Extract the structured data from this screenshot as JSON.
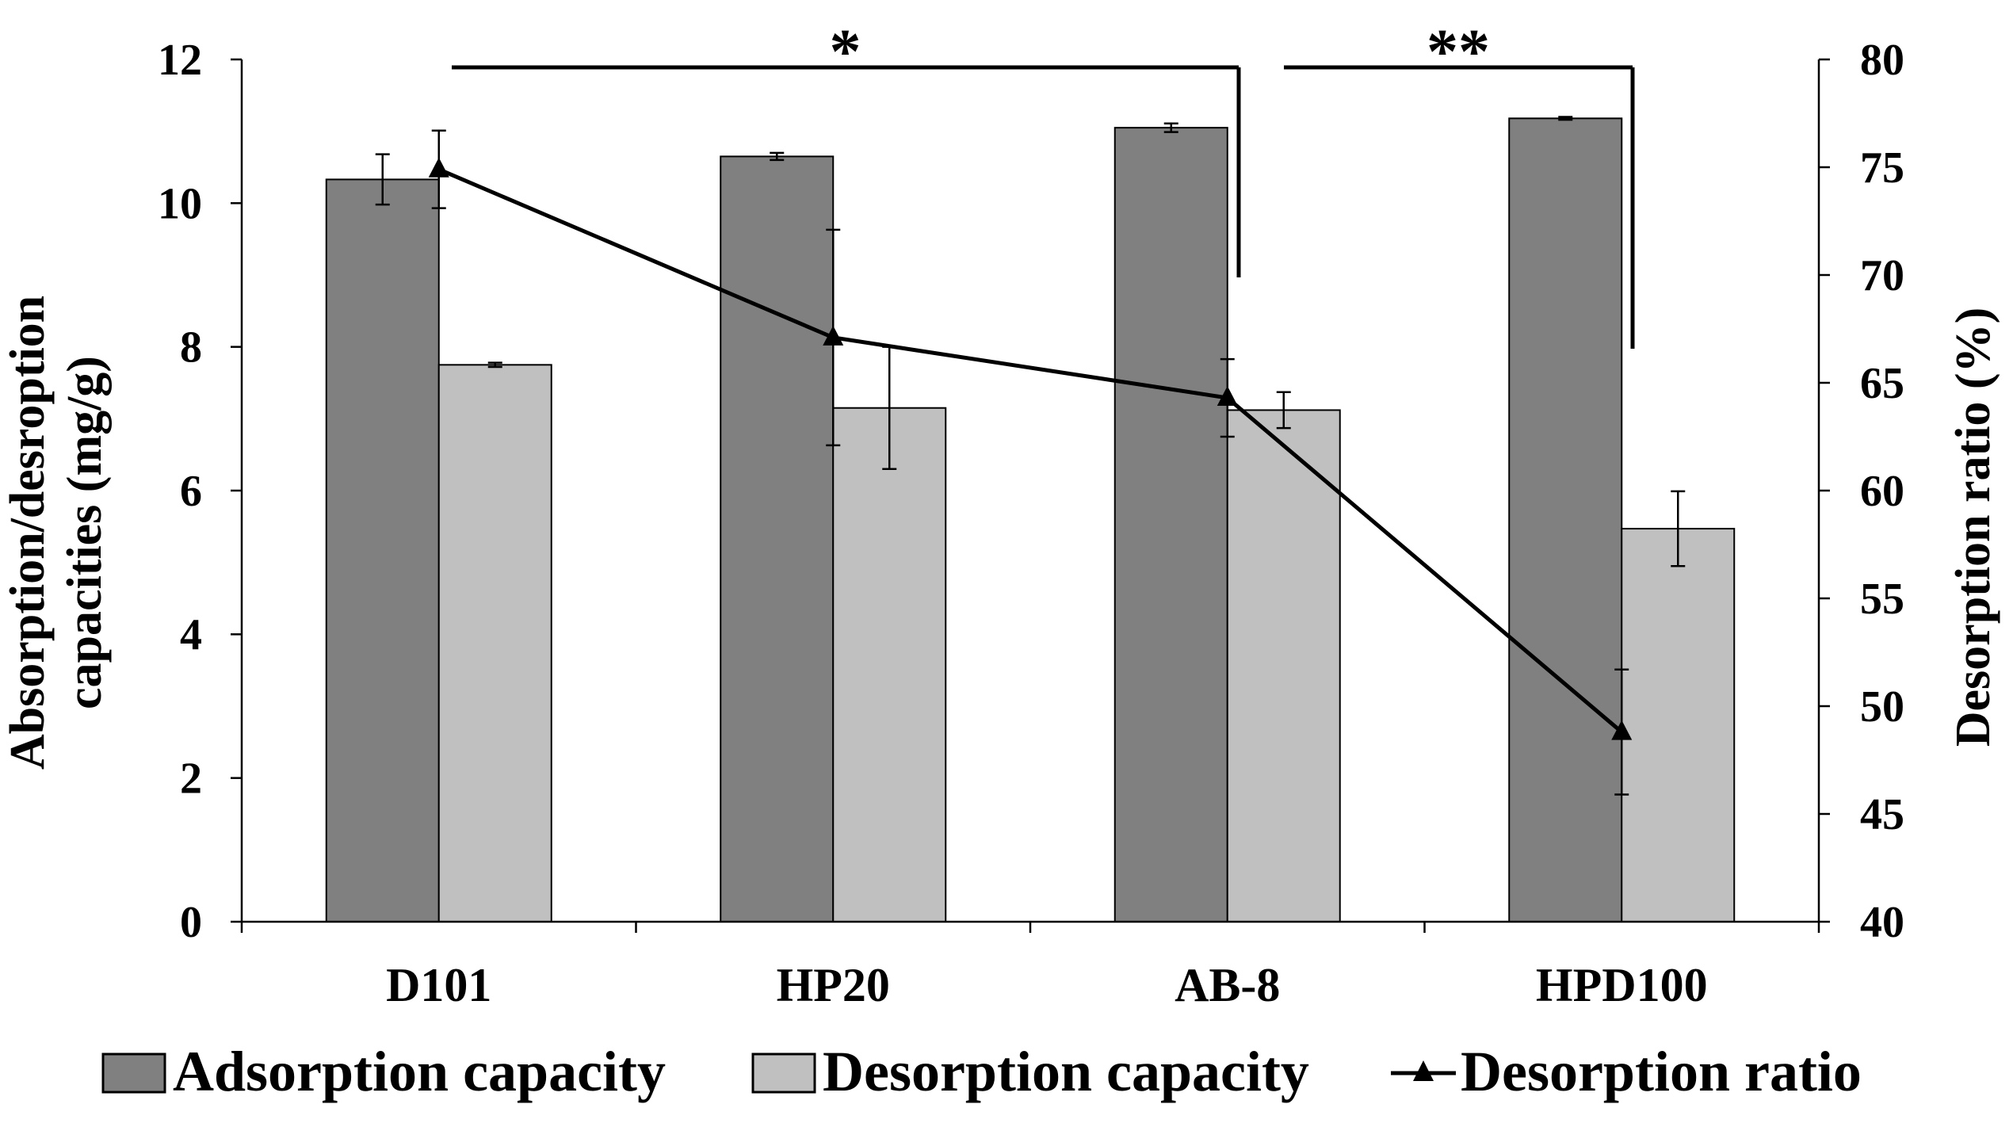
{
  "chart_data": {
    "type": "bar",
    "categories": [
      "D101",
      "HP20",
      "AB-8",
      "HPD100"
    ],
    "series": [
      {
        "name": "Adsorption capacity",
        "axis": "left",
        "kind": "bar",
        "color": "#808080",
        "values": [
          10.33,
          10.65,
          11.05,
          11.18
        ],
        "errors": [
          0.35,
          0.05,
          0.06,
          0.02
        ]
      },
      {
        "name": "Desorption capacity",
        "axis": "left",
        "kind": "bar",
        "color": "#c0c0c0",
        "values": [
          7.75,
          7.15,
          7.12,
          5.47
        ],
        "errors": [
          0.03,
          0.85,
          0.25,
          0.52
        ]
      },
      {
        "name": "Desorption ratio",
        "axis": "right",
        "kind": "line",
        "marker": "triangle",
        "color": "#000000",
        "values": [
          74.9,
          67.1,
          64.3,
          48.8
        ],
        "errors": [
          1.8,
          5.0,
          1.8,
          2.9
        ]
      }
    ],
    "ylabel": "Absorption/desroption capacities (mg/g)",
    "ylabel_right": "Desorption ratio (%)",
    "xlabel": "",
    "ylim": [
      0,
      12
    ],
    "ylim_right": [
      40,
      80
    ],
    "yticks": [
      "0",
      "2",
      "4",
      "6",
      "8",
      "10",
      "12"
    ],
    "yticks_right": [
      "40",
      "45",
      "50",
      "55",
      "60",
      "65",
      "70",
      "75",
      "80"
    ],
    "significance": [
      {
        "label": "*",
        "from": "D101",
        "to": "AB-8"
      },
      {
        "label": "**",
        "from": "AB-8",
        "to": "HPD100"
      }
    ],
    "legend": [
      "Adsorption capacity",
      "Desorption capacity",
      "Desorption ratio"
    ],
    "legend_position": "bottom"
  }
}
